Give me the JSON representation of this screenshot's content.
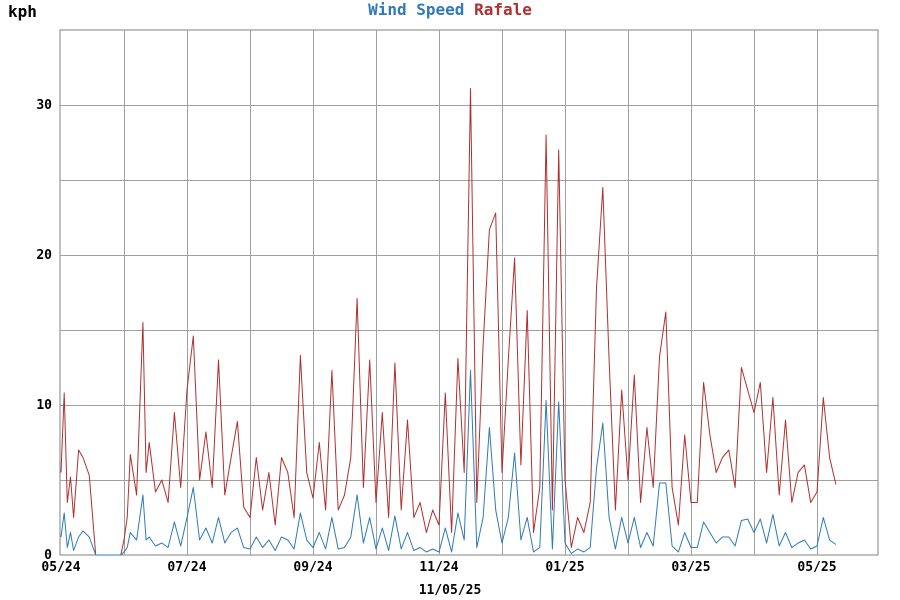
{
  "header": {
    "unit_label": "kph",
    "date_stamp": "11/05/25"
  },
  "colors": {
    "wind_speed": "#2f7ab8",
    "rafale": "#b03030",
    "grid": "#a0a0a0",
    "axis": "#808080"
  },
  "chart_data": {
    "type": "line",
    "title": "",
    "xlabel": "",
    "ylabel": "kph",
    "ylim": [
      0,
      35
    ],
    "yticks": [
      0,
      10,
      20,
      30
    ],
    "ygrid_step": 5,
    "grid": true,
    "legend": "top-center",
    "x_ticks": [
      {
        "label": "05/24",
        "month": 0
      },
      {
        "label": "07/24",
        "month": 2
      },
      {
        "label": "09/24",
        "month": 4
      },
      {
        "label": "11/24",
        "month": 6
      },
      {
        "label": "01/25",
        "month": 8
      },
      {
        "label": "03/25",
        "month": 10
      },
      {
        "label": "05/25",
        "month": 12
      }
    ],
    "x_range_months": [
      0,
      13.5
    ],
    "series": [
      {
        "name": "Rafale",
        "color": "#b03030",
        "x": [
          0.0,
          0.05,
          0.1,
          0.15,
          0.2,
          0.28,
          0.35,
          0.45,
          0.55,
          0.6,
          0.7,
          0.78,
          0.85,
          0.9,
          0.95,
          1.0,
          1.05,
          1.1,
          1.2,
          1.3,
          1.35,
          1.4,
          1.5,
          1.6,
          1.7,
          1.8,
          1.9,
          2.0,
          2.1,
          2.2,
          2.3,
          2.4,
          2.5,
          2.6,
          2.7,
          2.8,
          2.9,
          3.0,
          3.1,
          3.2,
          3.3,
          3.4,
          3.5,
          3.6,
          3.7,
          3.8,
          3.9,
          4.0,
          4.1,
          4.2,
          4.3,
          4.4,
          4.5,
          4.6,
          4.7,
          4.8,
          4.9,
          5.0,
          5.1,
          5.2,
          5.3,
          5.4,
          5.5,
          5.6,
          5.7,
          5.8,
          5.9,
          6.0,
          6.1,
          6.2,
          6.3,
          6.4,
          6.5,
          6.6,
          6.7,
          6.8,
          6.9,
          7.0,
          7.1,
          7.2,
          7.3,
          7.4,
          7.5,
          7.6,
          7.7,
          7.8,
          7.9,
          8.0,
          8.1,
          8.2,
          8.3,
          8.4,
          8.5,
          8.6,
          8.7,
          8.8,
          8.9,
          9.0,
          9.1,
          9.2,
          9.3,
          9.4,
          9.5,
          9.6,
          9.7,
          9.8,
          9.9,
          10.0,
          10.1,
          10.2,
          10.3,
          10.4,
          10.5,
          10.6,
          10.7,
          10.8,
          10.9,
          11.0,
          11.1,
          11.2,
          11.3,
          11.4,
          11.5,
          11.6,
          11.7,
          11.8,
          11.9,
          12.0,
          12.1,
          12.2,
          12.3
        ],
        "values": [
          5.5,
          10.8,
          3.5,
          5.2,
          2.5,
          7.0,
          6.5,
          5.3,
          0.0,
          0.0,
          0.0,
          0.0,
          0.0,
          0.0,
          0.0,
          1.0,
          2.5,
          6.7,
          4.0,
          15.5,
          5.5,
          7.5,
          4.2,
          5.0,
          3.5,
          9.5,
          4.5,
          11.0,
          14.6,
          5.0,
          8.2,
          4.5,
          13.0,
          4.0,
          6.5,
          8.9,
          3.2,
          2.5,
          6.5,
          3.0,
          5.5,
          2.0,
          6.5,
          5.5,
          2.5,
          13.3,
          5.5,
          3.8,
          7.5,
          3.0,
          12.3,
          3.0,
          4.0,
          6.5,
          17.1,
          4.5,
          13.0,
          3.5,
          9.5,
          2.5,
          12.8,
          3.0,
          9.0,
          2.5,
          3.5,
          1.5,
          3.0,
          2.0,
          10.8,
          1.5,
          13.1,
          5.5,
          31.1,
          3.5,
          14.0,
          21.7,
          22.8,
          5.5,
          13.0,
          19.8,
          6.0,
          16.3,
          1.5,
          4.5,
          28.0,
          3.0,
          27.0,
          5.0,
          0.5,
          2.5,
          1.5,
          3.5,
          17.8,
          24.5,
          13.0,
          3.0,
          11.0,
          5.0,
          12.0,
          3.5,
          8.5,
          4.5,
          13.2,
          16.2,
          4.5,
          2.0,
          8.0,
          3.5,
          3.5,
          11.5,
          8.0,
          5.5,
          6.5,
          7.0,
          4.5,
          12.5,
          11.0,
          9.5,
          11.5,
          5.5,
          10.5,
          4.0,
          9.0,
          3.5,
          5.5,
          6.0,
          3.5,
          4.2,
          10.5,
          6.5,
          4.7
        ]
      },
      {
        "name": "Wind Speed",
        "color": "#2f7ab8",
        "x": [
          0.0,
          0.05,
          0.1,
          0.15,
          0.2,
          0.28,
          0.35,
          0.45,
          0.55,
          0.6,
          0.7,
          0.78,
          0.85,
          0.9,
          0.95,
          1.0,
          1.05,
          1.1,
          1.2,
          1.3,
          1.35,
          1.4,
          1.5,
          1.6,
          1.7,
          1.8,
          1.9,
          2.0,
          2.1,
          2.2,
          2.3,
          2.4,
          2.5,
          2.6,
          2.7,
          2.8,
          2.9,
          3.0,
          3.1,
          3.2,
          3.3,
          3.4,
          3.5,
          3.6,
          3.7,
          3.8,
          3.9,
          4.0,
          4.1,
          4.2,
          4.3,
          4.4,
          4.5,
          4.6,
          4.7,
          4.8,
          4.9,
          5.0,
          5.1,
          5.2,
          5.3,
          5.4,
          5.5,
          5.6,
          5.7,
          5.8,
          5.9,
          6.0,
          6.1,
          6.2,
          6.3,
          6.4,
          6.5,
          6.6,
          6.7,
          6.8,
          6.9,
          7.0,
          7.1,
          7.2,
          7.3,
          7.4,
          7.5,
          7.6,
          7.7,
          7.8,
          7.9,
          8.0,
          8.1,
          8.2,
          8.3,
          8.4,
          8.5,
          8.6,
          8.7,
          8.8,
          8.9,
          9.0,
          9.1,
          9.2,
          9.3,
          9.4,
          9.5,
          9.6,
          9.7,
          9.8,
          9.9,
          10.0,
          10.1,
          10.2,
          10.3,
          10.4,
          10.5,
          10.6,
          10.7,
          10.8,
          10.9,
          11.0,
          11.1,
          11.2,
          11.3,
          11.4,
          11.5,
          11.6,
          11.7,
          11.8,
          11.9,
          12.0,
          12.1,
          12.2,
          12.3
        ],
        "values": [
          1.2,
          2.8,
          0.5,
          1.5,
          0.3,
          1.2,
          1.6,
          1.2,
          0.0,
          0.0,
          0.0,
          0.0,
          0.0,
          0.0,
          0.0,
          0.2,
          0.5,
          1.5,
          1.0,
          4.0,
          1.0,
          1.2,
          0.6,
          0.8,
          0.5,
          2.2,
          0.6,
          2.5,
          4.5,
          1.0,
          1.8,
          0.8,
          2.5,
          0.8,
          1.5,
          1.8,
          0.5,
          0.4,
          1.2,
          0.5,
          1.0,
          0.3,
          1.2,
          1.0,
          0.4,
          2.8,
          1.0,
          0.5,
          1.5,
          0.4,
          2.5,
          0.4,
          0.5,
          1.2,
          4.0,
          0.8,
          2.5,
          0.4,
          1.8,
          0.3,
          2.6,
          0.4,
          1.5,
          0.3,
          0.5,
          0.2,
          0.4,
          0.2,
          1.8,
          0.2,
          2.8,
          1.0,
          12.3,
          0.5,
          2.5,
          8.5,
          3.0,
          0.8,
          2.5,
          6.8,
          1.0,
          2.5,
          0.2,
          0.5,
          10.3,
          0.4,
          10.2,
          0.8,
          0.1,
          0.4,
          0.2,
          0.5,
          5.8,
          8.8,
          2.5,
          0.4,
          2.5,
          0.8,
          2.5,
          0.5,
          1.5,
          0.6,
          4.8,
          4.8,
          0.6,
          0.2,
          1.5,
          0.5,
          0.5,
          2.2,
          1.5,
          0.8,
          1.2,
          1.2,
          0.6,
          2.3,
          2.4,
          1.5,
          2.4,
          0.8,
          2.7,
          0.6,
          1.5,
          0.5,
          0.8,
          1.0,
          0.4,
          0.6,
          2.5,
          1.0,
          0.7
        ]
      }
    ]
  }
}
